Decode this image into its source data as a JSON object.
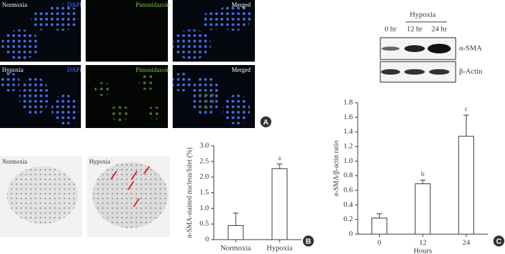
{
  "panel_a": {
    "letter": "A",
    "top_row": {
      "condition": "Normoxia",
      "stain1": "DAPI",
      "stain2": "Pimonidazole",
      "merged": "Merged"
    },
    "bottom_row": {
      "condition": "Hypoxia",
      "stain1": "DAPI",
      "stain2": "Pimonidazole",
      "merged": "Merged"
    }
  },
  "panel_b_images": {
    "left": "Normoxia",
    "right": "Hypoxia"
  },
  "blot": {
    "group": "Hypoxia",
    "lanes": [
      "0 hr",
      "12 hr",
      "24 hr"
    ],
    "rows": [
      "α-SMA",
      "β-Actin"
    ]
  },
  "chart_data": [
    {
      "type": "bar",
      "panel": "B",
      "y_label": "α-SMA-stained nucleus/Islet (%)",
      "categories": [
        "Normoxia",
        "Hypoxia"
      ],
      "values": [
        0.45,
        2.27
      ],
      "errors": [
        0.4,
        0.15
      ],
      "color": "#ffffff",
      "ylim": [
        0,
        3
      ],
      "yticks": [
        0,
        0.5,
        {
          "value": 1,
          "label": "1.0"
        },
        1.5,
        {
          "value": 2,
          "label": "2.0"
        },
        2.5,
        {
          "value": 3,
          "label": "3.0"
        }
      ],
      "annotations": [
        {
          "x": "Hypoxia",
          "text": "a"
        }
      ]
    },
    {
      "type": "bar",
      "panel": "C",
      "x_label": "Hours",
      "y_label": "α-SMA/β-actin ratio",
      "categories": [
        "0",
        "12",
        "24"
      ],
      "values": [
        0.22,
        0.69,
        1.34
      ],
      "errors": [
        0.06,
        0.05,
        0.29
      ],
      "color": "#ffffff",
      "ylim": [
        0,
        1.8
      ],
      "yticks": [
        0,
        0.2,
        0.4,
        0.6,
        0.8,
        {
          "value": 1,
          "label": "1.0"
        },
        1.2,
        1.4,
        1.6,
        1.8
      ],
      "annotations": [
        {
          "x": "12",
          "text": "b"
        },
        {
          "x": "24",
          "text": "c"
        }
      ]
    }
  ]
}
